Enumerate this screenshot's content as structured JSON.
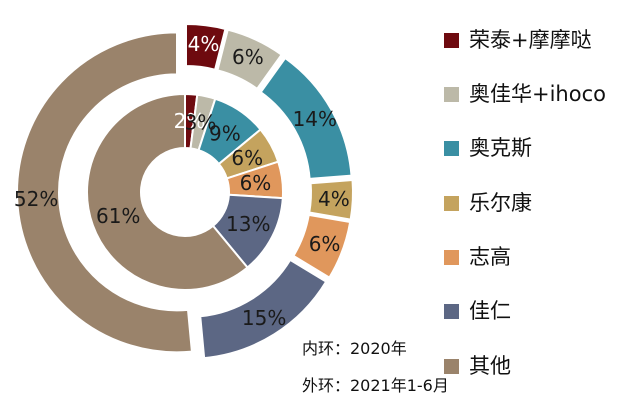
{
  "chart_data": {
    "type": "pie",
    "categories": [
      "荣泰+摩摩哒",
      "奥佳华+ihoco",
      "奥克斯",
      "乐尔康",
      "志高",
      "佳仁",
      "其他"
    ],
    "series": [
      {
        "name": "2020年",
        "values": [
          2,
          3,
          9,
          6,
          6,
          13,
          61
        ],
        "labels": [
          "2%",
          "3%",
          "9%",
          "6%",
          "6%",
          "13%",
          "61%"
        ]
      },
      {
        "name": "2021年1-6月",
        "values": [
          4,
          6,
          14,
          4,
          6,
          15,
          52
        ],
        "labels": [
          "4%",
          "6%",
          "14%",
          "4%",
          "6%",
          "15%",
          "52%"
        ]
      }
    ],
    "colors": [
      "#6e0a0f",
      "#bcb9a8",
      "#3a8fa3",
      "#c4a35e",
      "#e0975c",
      "#5c6784",
      "#9a836b"
    ],
    "legend_position": "right"
  },
  "notes": {
    "inner": "内环：2020年",
    "outer": "外环：2021年1-6月"
  }
}
